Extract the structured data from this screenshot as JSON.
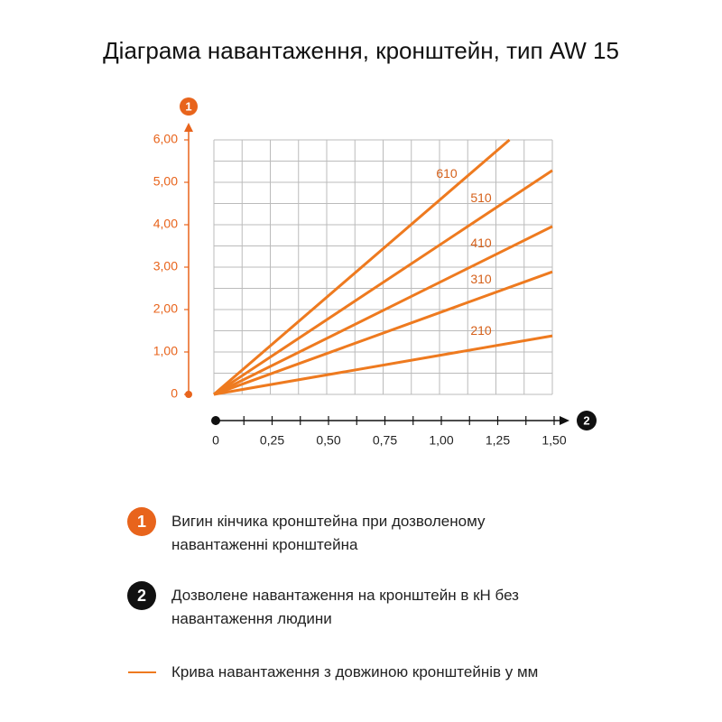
{
  "chart_data": {
    "type": "line",
    "title": "Діаграма навантаження, кронштейн, тип AW 15",
    "y_label": "1",
    "x_label": "2",
    "xlim": [
      0,
      1.5
    ],
    "ylim": [
      0,
      6
    ],
    "xticks": [
      0,
      {
        "value": 0.25,
        "label": "0,25"
      },
      {
        "value": 0.5,
        "label": "0,50"
      },
      {
        "value": 0.75,
        "label": "0,75"
      },
      {
        "value": 1,
        "label": "1,00"
      },
      {
        "value": 1.25,
        "label": "1,25"
      },
      {
        "value": 1.5,
        "label": "1,50"
      }
    ],
    "yticks": [
      0,
      {
        "value": 1,
        "label": "1,00"
      },
      {
        "value": 2,
        "label": "2,00"
      },
      {
        "value": 3,
        "label": "3,00"
      },
      {
        "value": 4,
        "label": "4,00"
      },
      {
        "value": 5,
        "label": "5,00"
      },
      {
        "value": 6,
        "label": "6,00"
      }
    ],
    "x_gridlines": [
      0,
      0.125,
      0.25,
      0.375,
      0.5,
      0.625,
      0.75,
      0.875,
      1,
      1.125,
      1.25,
      1.375,
      1.5
    ],
    "y_gridlines": [
      0,
      0.5,
      1,
      1.5,
      2,
      2.5,
      3,
      3.5,
      4,
      4.5,
      5,
      5.5,
      6
    ],
    "grid": true,
    "series": [
      {
        "name": "610",
        "color": "#ee7a1f",
        "x": [
          0,
          1.31
        ],
        "values": [
          0,
          6
        ]
      },
      {
        "name": "510",
        "color": "#ee7a1f",
        "x": [
          0,
          1.5
        ],
        "values": [
          0,
          5.28
        ]
      },
      {
        "name": "410",
        "color": "#ee7a1f",
        "x": [
          0,
          1.5
        ],
        "values": [
          0,
          3.96
        ]
      },
      {
        "name": "310",
        "color": "#ee7a1f",
        "x": [
          0,
          1.5
        ],
        "values": [
          0,
          2.89
        ]
      },
      {
        "name": "210",
        "color": "#ee7a1f",
        "x": [
          0,
          1.5
        ],
        "values": [
          0,
          1.38
        ]
      }
    ],
    "legend_items": [
      "Вигин кінчика кронштейна при дозволеному навантаженні кронштейна",
      "Дозволене навантаження на кронштейн в кН без навантаження людини",
      "Крива навантаження з довжиною кронштейнів у мм"
    ]
  }
}
